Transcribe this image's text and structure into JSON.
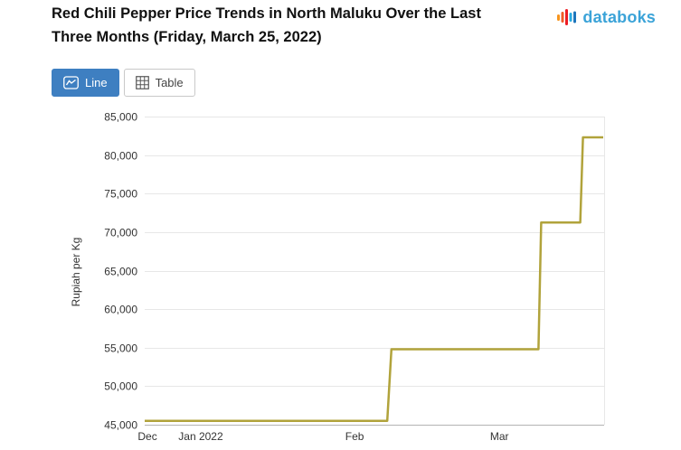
{
  "header": {
    "title": "Red Chili Pepper Price Trends in North Maluku Over the Last Three Months (Friday, March 25, 2022)",
    "logo_text": "databoks",
    "logo_text_color": "#3ba3d8",
    "logo_bar_colors": [
      "#f7941d",
      "#f15a29",
      "#ed1c24",
      "#27aae1",
      "#1c75bc"
    ]
  },
  "toolbar": {
    "line_label": "Line",
    "table_label": "Table",
    "active_button_color": "#3e7fc1"
  },
  "chart_data": {
    "type": "line",
    "title": "Red Chili Pepper Price Trends in North Maluku Over the Last Three Months (Friday, March 25, 2022)",
    "xlabel": "",
    "ylabel": "Rupiah per Kg",
    "ylim": [
      45000,
      85000
    ],
    "ytick_step": 5000,
    "yticks": [
      {
        "value": 45000,
        "label": "45,000"
      },
      {
        "value": 50000,
        "label": "50,000"
      },
      {
        "value": 55000,
        "label": "55,000"
      },
      {
        "value": 60000,
        "label": "60,000"
      },
      {
        "value": 65000,
        "label": "65,000"
      },
      {
        "value": 70000,
        "label": "70,000"
      },
      {
        "value": 75000,
        "label": "75,000"
      },
      {
        "value": 80000,
        "label": "80,000"
      },
      {
        "value": 85000,
        "label": "85,000"
      }
    ],
    "xticks": [
      {
        "label": "Dec",
        "pos": 0.006
      },
      {
        "label": "Jan 2022",
        "pos": 0.122
      },
      {
        "label": "Feb",
        "pos": 0.457
      },
      {
        "label": "Mar",
        "pos": 0.772
      }
    ],
    "points": [
      {
        "x": 0.0,
        "value": 45500
      },
      {
        "x": 0.528,
        "value": 45500
      },
      {
        "x": 0.537,
        "value": 54800
      },
      {
        "x": 0.857,
        "value": 54800
      },
      {
        "x": 0.863,
        "value": 71250
      },
      {
        "x": 0.948,
        "value": 71250
      },
      {
        "x": 0.954,
        "value": 82300
      },
      {
        "x": 0.998,
        "value": 82300
      }
    ],
    "line_color": "#b1a33b",
    "grid_color": "#e7e7e7",
    "axis_color": "#b3b3b3",
    "tick_text_color": "#333333",
    "grid": true,
    "legend": "none"
  }
}
